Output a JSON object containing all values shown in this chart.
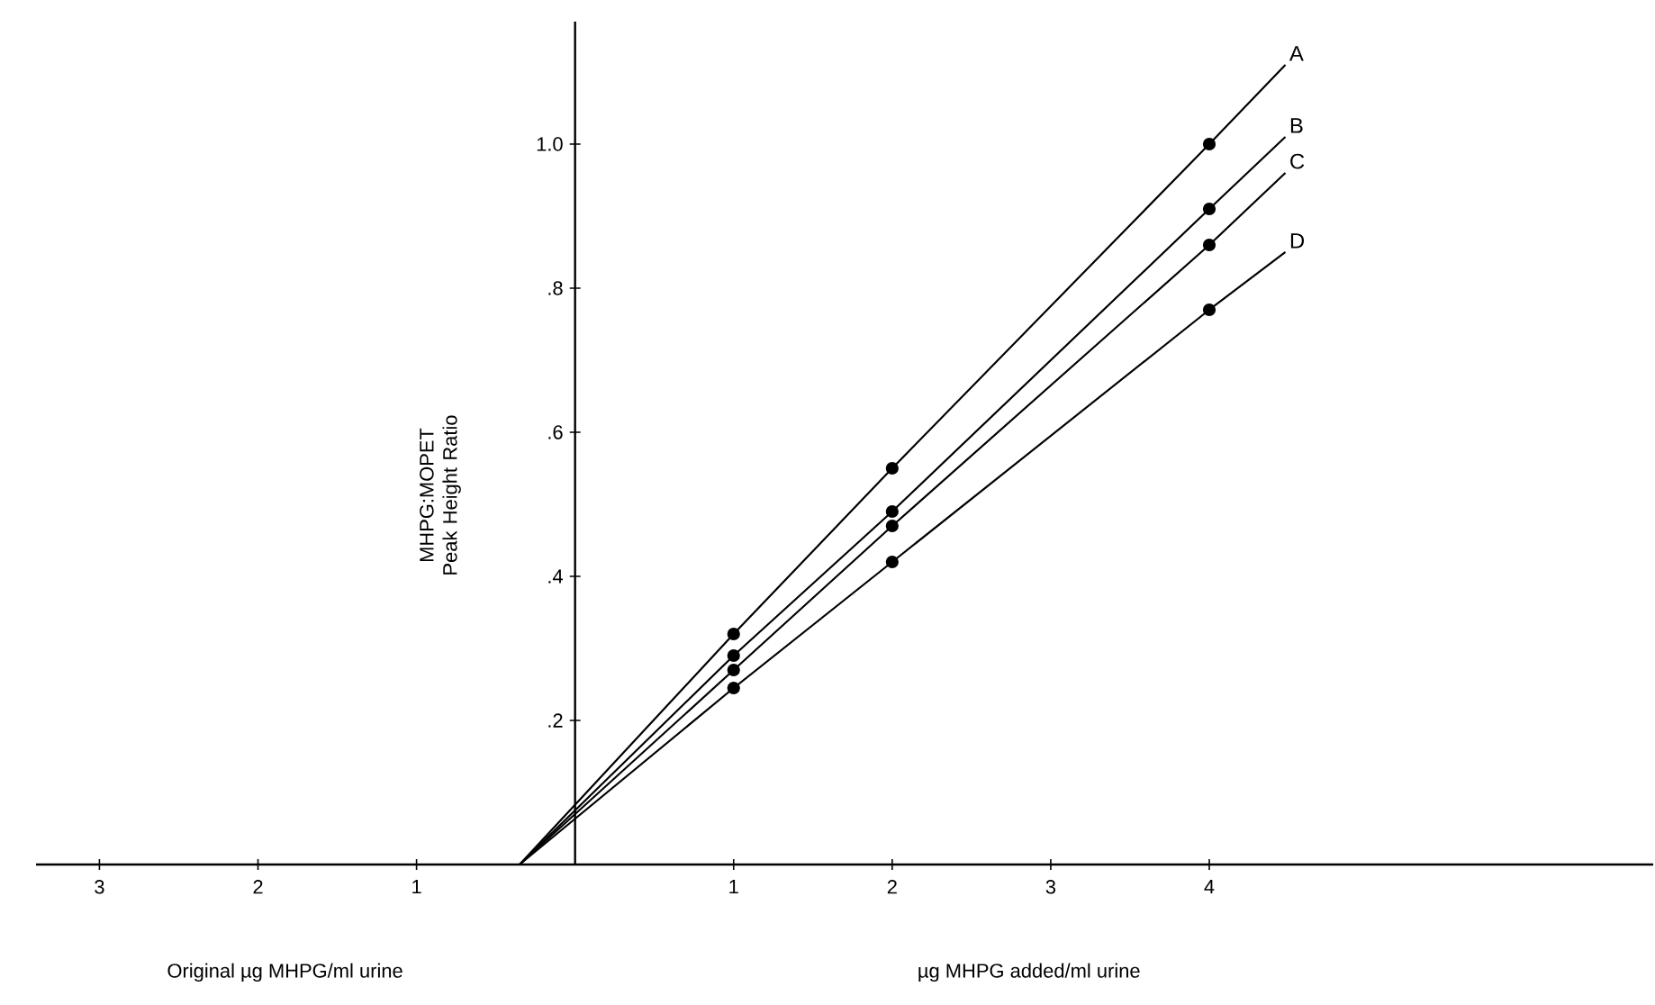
{
  "chart_data": {
    "type": "line",
    "xlabel": "µg MHPG added/ml urine",
    "ylabel": "MHPG:MOPET Peak Height Ratio",
    "annotations": [
      "Original µg MHPG/ml urine"
    ],
    "xlim": [
      -3.4,
      6.8
    ],
    "ylim": [
      0,
      1.17
    ],
    "xticks": [
      {
        "value": -3,
        "label": "3"
      },
      {
        "value": -2,
        "label": "2"
      },
      {
        "value": -1,
        "label": "1"
      },
      1,
      2,
      3,
      4
    ],
    "yticks": [
      {
        "value": 0.2,
        "label": ".2"
      },
      {
        "value": 0.4,
        "label": ".4"
      },
      {
        "value": 0.6,
        "label": ".6"
      },
      {
        "value": 0.8,
        "label": ".8"
      },
      {
        "value": 1.0,
        "label": "1.0"
      }
    ],
    "series": [
      {
        "name": "A",
        "color": "#000000",
        "x": [
          -0.35,
          1,
          2,
          4,
          4.48
        ],
        "values": [
          0,
          0.32,
          0.55,
          1.0,
          1.11
        ]
      },
      {
        "name": "B",
        "color": "#000000",
        "x": [
          -0.35,
          1,
          2,
          4,
          4.48
        ],
        "values": [
          0,
          0.29,
          0.49,
          0.91,
          1.01
        ]
      },
      {
        "name": "C",
        "color": "#000000",
        "x": [
          -0.35,
          1,
          2,
          4,
          4.48
        ],
        "values": [
          0,
          0.27,
          0.47,
          0.86,
          0.96
        ]
      },
      {
        "name": "D",
        "color": "#000000",
        "x": [
          -0.35,
          1,
          2,
          4,
          4.48
        ],
        "values": [
          0,
          0.245,
          0.42,
          0.77,
          0.85
        ]
      },
      {
        "type": "scatter",
        "marker": "circle",
        "color": "#000000",
        "x": [
          1,
          2,
          4
        ],
        "values": [
          0.32,
          0.55,
          1.0
        ]
      },
      {
        "type": "scatter",
        "marker": "circle",
        "color": "#000000",
        "x": [
          1,
          2,
          4
        ],
        "values": [
          0.29,
          0.49,
          0.91
        ]
      },
      {
        "type": "scatter",
        "marker": "circle",
        "color": "#000000",
        "x": [
          1,
          2,
          4
        ],
        "values": [
          0.27,
          0.47,
          0.86
        ]
      },
      {
        "type": "scatter",
        "marker": "circle",
        "color": "#000000",
        "x": [
          1,
          2,
          4
        ],
        "values": [
          0.245,
          0.42,
          0.77
        ]
      }
    ]
  }
}
